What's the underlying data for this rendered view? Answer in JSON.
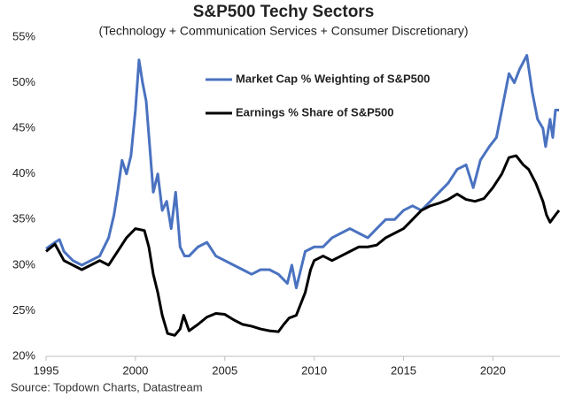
{
  "chart_data": {
    "type": "line",
    "title": "S&P500 Techy Sectors",
    "subtitle": "(Technology + Communication Services + Consumer Discretionary)",
    "source": "Source: Topdown Charts, Datastream",
    "legend": "upper-center",
    "grid": false,
    "xlim": [
      1995,
      2023.75
    ],
    "xticks": [
      1995,
      2000,
      2005,
      2010,
      2015,
      2020
    ],
    "ylim": [
      20,
      55
    ],
    "yticks": [
      {
        "value": 20,
        "label": "20%"
      },
      {
        "value": 25,
        "label": "25%"
      },
      {
        "value": 30,
        "label": "30%"
      },
      {
        "value": 35,
        "label": "35%"
      },
      {
        "value": 40,
        "label": "40%"
      },
      {
        "value": 45,
        "label": "45%"
      },
      {
        "value": 50,
        "label": "50%"
      },
      {
        "value": 55,
        "label": "55%"
      }
    ],
    "series": [
      {
        "name": "Market Cap % Weighting of S&P500",
        "color": "#4a72c0",
        "x": [
          1995,
          1995.5,
          1995.75,
          1996,
          1996.5,
          1997,
          1997.5,
          1998,
          1998.5,
          1998.8,
          1999,
          1999.25,
          1999.5,
          1999.75,
          2000,
          2000.2,
          2000.4,
          2000.6,
          2000.8,
          2001,
          2001.25,
          2001.5,
          2001.75,
          2002,
          2002.25,
          2002.5,
          2002.75,
          2003,
          2003.5,
          2004,
          2004.5,
          2005,
          2005.5,
          2006,
          2006.5,
          2007,
          2007.5,
          2008,
          2008.5,
          2008.75,
          2009,
          2009.25,
          2009.5,
          2010,
          2010.5,
          2011,
          2011.5,
          2012,
          2012.5,
          2013,
          2013.5,
          2014,
          2014.5,
          2015,
          2015.5,
          2016,
          2016.5,
          2017,
          2017.5,
          2018,
          2018.5,
          2018.9,
          2019.3,
          2019.8,
          2020.2,
          2020.6,
          2020.9,
          2021.2,
          2021.5,
          2021.9,
          2022.2,
          2022.5,
          2022.8,
          2022.95,
          2023.2,
          2023.35,
          2023.5,
          2023.7
        ],
        "values": [
          31.8,
          32.5,
          32.8,
          31.5,
          30.5,
          30,
          30.5,
          31,
          33,
          35.5,
          38,
          41.5,
          40,
          42,
          47,
          52.5,
          50,
          48,
          43,
          38,
          40,
          36,
          37,
          34,
          38,
          32,
          31,
          31,
          32,
          32.5,
          31,
          30.5,
          30,
          29.5,
          29,
          29.5,
          29.5,
          29,
          28,
          30,
          27.5,
          29.5,
          31.5,
          32,
          32,
          33,
          33.5,
          34,
          33.5,
          33,
          34,
          35,
          35,
          36,
          36.5,
          36,
          37,
          38,
          39,
          40.5,
          41,
          38.5,
          41.5,
          43,
          44,
          48,
          51,
          50,
          51.5,
          53,
          49,
          46,
          45,
          43,
          46,
          44,
          47,
          47
        ]
      },
      {
        "name": "Earnings % Share of S&P500",
        "color": "#000000",
        "x": [
          1995,
          1995.5,
          1996,
          1996.5,
          1997,
          1997.5,
          1998,
          1998.5,
          1999,
          1999.5,
          2000,
          2000.5,
          2000.75,
          2001,
          2001.25,
          2001.5,
          2001.8,
          2002.2,
          2002.5,
          2002.7,
          2003,
          2003.5,
          2004,
          2004.5,
          2005,
          2005.5,
          2006,
          2006.5,
          2007,
          2007.5,
          2008,
          2008.3,
          2008.6,
          2009,
          2009.5,
          2009.8,
          2010,
          2010.5,
          2011,
          2011.5,
          2012,
          2012.5,
          2013,
          2013.5,
          2014,
          2014.5,
          2015,
          2015.5,
          2016,
          2016.5,
          2017,
          2017.5,
          2018,
          2018.5,
          2019,
          2019.5,
          2020,
          2020.5,
          2020.9,
          2021.3,
          2021.7,
          2022,
          2022.4,
          2022.8,
          2023,
          2023.2,
          2023.5,
          2023.7
        ],
        "values": [
          31.5,
          32.3,
          30.5,
          30,
          29.5,
          30,
          30.5,
          30,
          31.5,
          33,
          34,
          33.8,
          32,
          29,
          27,
          24.5,
          22.5,
          22.3,
          23,
          24.5,
          22.8,
          23.5,
          24.3,
          24.7,
          24.6,
          24,
          23.5,
          23.3,
          23,
          22.8,
          22.7,
          23.5,
          24.2,
          24.5,
          27,
          29.5,
          30.5,
          31,
          30.5,
          31,
          31.5,
          32,
          32,
          32.2,
          33,
          33.5,
          34,
          35,
          36,
          36.5,
          36.8,
          37.2,
          37.8,
          37.2,
          37,
          37.3,
          38.5,
          40,
          41.8,
          42,
          41,
          40.5,
          39,
          37,
          35.5,
          34.7,
          35.5,
          36
        ]
      }
    ]
  }
}
